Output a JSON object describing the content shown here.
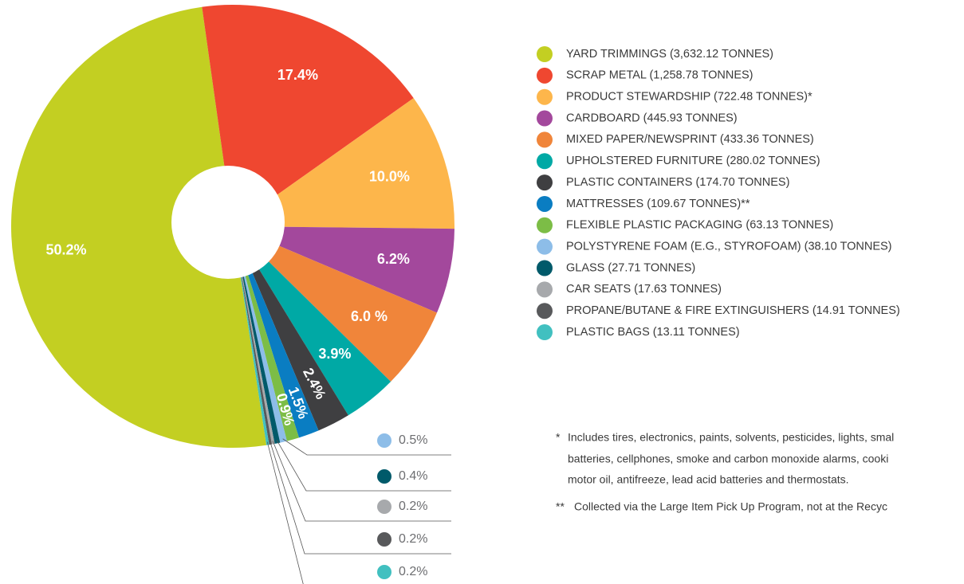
{
  "chart_data": {
    "type": "pie",
    "categories": [
      "YARD TRIMMINGS (3,632.12 TONNES)",
      "SCRAP METAL (1,258.78 TONNES)",
      "PRODUCT STEWARDSHIP (722.48 TONNES)*",
      "CARDBOARD (445.93 TONNES)",
      "MIXED PAPER/NEWSPRINT (433.36 TONNES)",
      "UPHOLSTERED FURNITURE (280.02 TONNES)",
      "PLASTIC CONTAINERS (174.70 TONNES)",
      "MATTRESSES (109.67 TONNES)**",
      "FLEXIBLE PLASTIC PACKAGING (63.13 TONNES)",
      "POLYSTYRENE FOAM (E.G., STYROFOAM) (38.10 TONNES)",
      "GLASS (27.71 TONNES)",
      "CAR SEATS (17.63 TONNES)",
      "PROPANE/BUTANE & FIRE EXTINGUISHERS (14.91 TONNES)",
      "PLASTIC BAGS (13.11 TONNES)"
    ],
    "values": [
      50.2,
      17.4,
      10.0,
      6.2,
      6.0,
      3.9,
      2.4,
      1.5,
      0.9,
      0.5,
      0.4,
      0.2,
      0.2,
      0.2
    ],
    "value_labels": [
      "50.2%",
      "17.4%",
      "10.0%",
      "6.2%",
      "6.0 %",
      "3.9%",
      "2.4%",
      "1.5%",
      "0.9%",
      "0.5%",
      "0.4%",
      "0.2%",
      "0.2%",
      "0.2%"
    ],
    "colors": [
      "#c3cf22",
      "#ef4730",
      "#fdb64b",
      "#a3489c",
      "#f0853a",
      "#00a9a5",
      "#3f3f41",
      "#0a7dc2",
      "#7cbd46",
      "#8dbde8",
      "#005a6a",
      "#a7a9ac",
      "#58595b",
      "#41c0c0"
    ],
    "notes": [
      {
        "marker": "*",
        "lines": [
          "Includes tires, electronics, paints, solvents, pesticides, lights, smal",
          "batteries, cellphones, smoke and carbon monoxide alarms, cooki",
          "motor oil, antifreeze, lead acid batteries and thermostats."
        ]
      },
      {
        "marker": "**",
        "lines": [
          "Collected via the Large Item Pick Up Program, not at the Recyc"
        ]
      }
    ]
  }
}
